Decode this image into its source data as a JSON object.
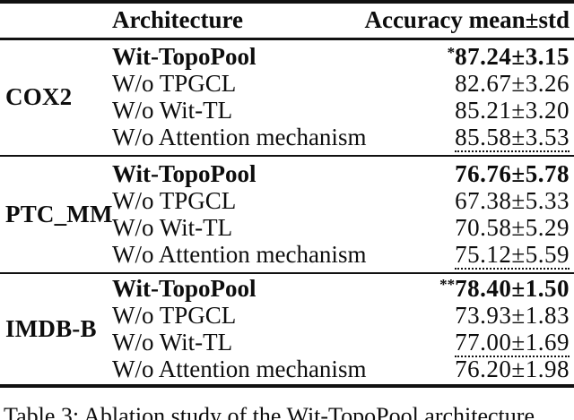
{
  "colors": {
    "background": "#ffffff",
    "text": "#0d0d0d",
    "rule": "#111111"
  },
  "table": {
    "headers": {
      "architecture": "Architecture",
      "accuracy": "Accuracy mean±std"
    },
    "groups": [
      {
        "dataset": "COX2",
        "rows": [
          {
            "arch": "Wit-TopoPool",
            "stars": "*",
            "value": "87.24±3.15",
            "emphasis": "best-bold"
          },
          {
            "arch": "W/o TPGCL",
            "stars": "",
            "value": "82.67±3.26",
            "emphasis": "none"
          },
          {
            "arch": "W/o Wit-TL",
            "stars": "",
            "value": "85.21±3.20",
            "emphasis": "none"
          },
          {
            "arch": "W/o Attention mechanism",
            "stars": "",
            "value": "85.58±3.53",
            "emphasis": "second-best-dotted-underline"
          }
        ]
      },
      {
        "dataset": "PTC_MM",
        "rows": [
          {
            "arch": "Wit-TopoPool",
            "stars": "",
            "value": "76.76±5.78",
            "emphasis": "best-bold"
          },
          {
            "arch": "W/o TPGCL",
            "stars": "",
            "value": "67.38±5.33",
            "emphasis": "none"
          },
          {
            "arch": "W/o Wit-TL",
            "stars": "",
            "value": "70.58±5.29",
            "emphasis": "none"
          },
          {
            "arch": "W/o Attention mechanism",
            "stars": "",
            "value": "75.12±5.59",
            "emphasis": "second-best-dotted-underline"
          }
        ]
      },
      {
        "dataset": "IMDB-B",
        "rows": [
          {
            "arch": "Wit-TopoPool",
            "stars": "**",
            "value": "78.40±1.50",
            "emphasis": "best-bold"
          },
          {
            "arch": "W/o TPGCL",
            "stars": "",
            "value": "73.93±1.83",
            "emphasis": "none"
          },
          {
            "arch": "W/o Wit-TL",
            "stars": "",
            "value": "77.00±1.69",
            "emphasis": "second-best-dotted-underline"
          },
          {
            "arch": "W/o Attention mechanism",
            "stars": "",
            "value": "76.20±1.98",
            "emphasis": "none"
          }
        ]
      }
    ]
  },
  "caption": {
    "text": "Table 3: Ablation study of the Wit-TopoPool architecture"
  }
}
